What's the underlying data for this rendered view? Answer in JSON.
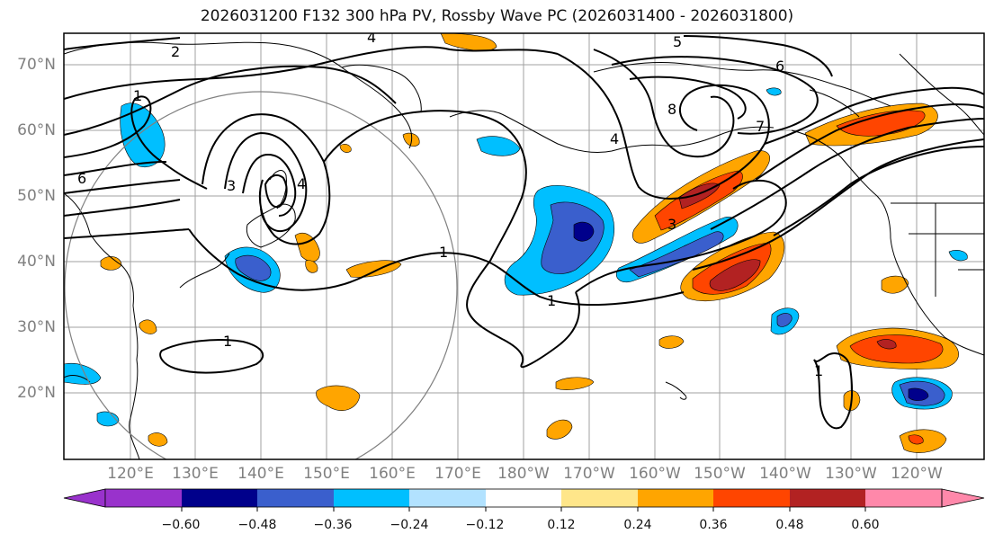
{
  "title": "2026031200 F132 300 hPa PV, Rossby Wave PC (2026031400 - 2026031800)",
  "map": {
    "lat_labels": [
      "70°N",
      "60°N",
      "50°N",
      "40°N",
      "30°N",
      "20°N"
    ],
    "lon_labels": [
      "120°E",
      "130°E",
      "140°E",
      "150°E",
      "160°E",
      "170°E",
      "180°W",
      "170°W",
      "160°W",
      "150°W",
      "140°W",
      "130°W",
      "120°W"
    ],
    "contour_labels": [
      "1",
      "2",
      "3",
      "4",
      "5",
      "6",
      "7",
      "8"
    ],
    "land_color": "#ffffff",
    "grid_color": "#a0a0a0"
  },
  "colorbar": {
    "ticks": [
      "−0.60",
      "−0.48",
      "−0.36",
      "−0.24",
      "−0.12",
      "0.12",
      "0.24",
      "0.36",
      "0.48",
      "0.60"
    ],
    "colors": [
      "#9932cc",
      "#00008b",
      "#3a5fcd",
      "#00bfff",
      "#b2e2ff",
      "#ffffff",
      "#ffe68a",
      "#ffa500",
      "#ff4500",
      "#b22222",
      "#ff88aa"
    ]
  }
}
